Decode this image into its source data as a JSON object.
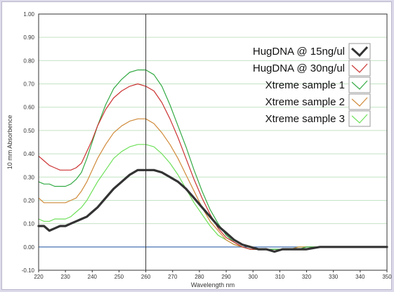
{
  "chart_data": {
    "type": "line",
    "title": "",
    "xlabel": "Wavelength nm",
    "ylabel": "10 mm Absorbence",
    "xlim": [
      220,
      350
    ],
    "ylim": [
      -0.1,
      1.0
    ],
    "x_ticks": [
      "220",
      "230",
      "240",
      "250",
      "260",
      "270",
      "280",
      "290",
      "300",
      "310",
      "320",
      "330",
      "340",
      "350"
    ],
    "y_ticks": [
      "-0.10",
      "0.00",
      "0.10",
      "0.20",
      "0.30",
      "0.40",
      "0.50",
      "0.60",
      "0.70",
      "0.80",
      "0.90",
      "1.00"
    ],
    "grid": true,
    "baseline": 0.0,
    "marker_wavelength": 260,
    "legend_position": "top-right",
    "x": [
      220,
      222,
      224,
      226,
      228,
      230,
      232,
      234,
      236,
      238,
      240,
      242,
      245,
      248,
      251,
      254,
      257,
      260,
      263,
      266,
      269,
      272,
      275,
      278,
      281,
      284,
      287,
      290,
      293,
      296,
      299,
      302,
      305,
      308,
      311,
      314,
      317,
      320,
      325,
      330,
      335,
      340,
      345,
      350
    ],
    "series": [
      {
        "name": "HugDNA @ 15ng/ul",
        "color": "#333333",
        "width": 3.2,
        "values": [
          0.09,
          0.09,
          0.07,
          0.08,
          0.09,
          0.09,
          0.1,
          0.11,
          0.12,
          0.13,
          0.15,
          0.17,
          0.21,
          0.25,
          0.28,
          0.31,
          0.33,
          0.33,
          0.33,
          0.32,
          0.3,
          0.28,
          0.25,
          0.21,
          0.17,
          0.13,
          0.09,
          0.06,
          0.03,
          0.01,
          0.0,
          -0.01,
          -0.01,
          -0.02,
          -0.01,
          -0.01,
          -0.01,
          -0.01,
          0.0,
          0.0,
          0.0,
          0.0,
          0.0,
          0.0
        ]
      },
      {
        "name": "HugDNA @ 30ng/ul",
        "color": "#cc3333",
        "width": 1.2,
        "values": [
          0.39,
          0.37,
          0.35,
          0.34,
          0.33,
          0.33,
          0.33,
          0.34,
          0.36,
          0.41,
          0.46,
          0.52,
          0.59,
          0.64,
          0.67,
          0.69,
          0.7,
          0.69,
          0.67,
          0.62,
          0.55,
          0.47,
          0.38,
          0.29,
          0.21,
          0.14,
          0.08,
          0.04,
          0.02,
          0.0,
          -0.01,
          -0.01,
          -0.01,
          -0.02,
          -0.01,
          -0.01,
          -0.01,
          -0.01,
          0.0,
          0.0,
          0.0,
          0.0,
          0.0,
          0.0
        ]
      },
      {
        "name": "Xtreme sample 1",
        "color": "#33aa44",
        "width": 1.2,
        "values": [
          0.28,
          0.27,
          0.27,
          0.26,
          0.26,
          0.26,
          0.27,
          0.29,
          0.32,
          0.38,
          0.45,
          0.52,
          0.61,
          0.68,
          0.72,
          0.75,
          0.76,
          0.76,
          0.74,
          0.69,
          0.61,
          0.52,
          0.43,
          0.33,
          0.24,
          0.16,
          0.1,
          0.05,
          0.02,
          0.0,
          -0.01,
          -0.01,
          -0.01,
          -0.01,
          -0.01,
          -0.01,
          -0.01,
          0.0,
          0.0,
          0.0,
          0.0,
          0.0,
          0.0,
          0.0
        ]
      },
      {
        "name": "Xtreme sample 2",
        "color": "#d08a3a",
        "width": 1.2,
        "values": [
          0.21,
          0.19,
          0.19,
          0.19,
          0.19,
          0.19,
          0.2,
          0.21,
          0.24,
          0.28,
          0.33,
          0.38,
          0.44,
          0.49,
          0.52,
          0.54,
          0.55,
          0.55,
          0.53,
          0.49,
          0.44,
          0.38,
          0.31,
          0.24,
          0.17,
          0.11,
          0.07,
          0.03,
          0.01,
          0.0,
          -0.01,
          -0.01,
          -0.01,
          -0.01,
          -0.01,
          -0.01,
          0.0,
          0.0,
          0.0,
          0.0,
          0.0,
          0.0,
          0.0,
          0.0
        ]
      },
      {
        "name": "Xtreme sample 3",
        "color": "#6ee05a",
        "width": 1.2,
        "values": [
          0.12,
          0.11,
          0.11,
          0.12,
          0.12,
          0.12,
          0.13,
          0.15,
          0.17,
          0.2,
          0.24,
          0.28,
          0.33,
          0.38,
          0.41,
          0.43,
          0.44,
          0.44,
          0.43,
          0.4,
          0.36,
          0.31,
          0.25,
          0.19,
          0.14,
          0.09,
          0.05,
          0.03,
          0.01,
          0.0,
          -0.01,
          -0.01,
          -0.01,
          -0.01,
          -0.01,
          -0.01,
          0.0,
          0.0,
          0.0,
          0.0,
          0.0,
          0.0,
          0.0,
          0.0
        ]
      }
    ]
  },
  "colors": {
    "grid": "#c4e3c4",
    "axis": "#333333",
    "baseline": "#2255aa",
    "marker": "#333333",
    "page_background": "#dcd9ea"
  }
}
